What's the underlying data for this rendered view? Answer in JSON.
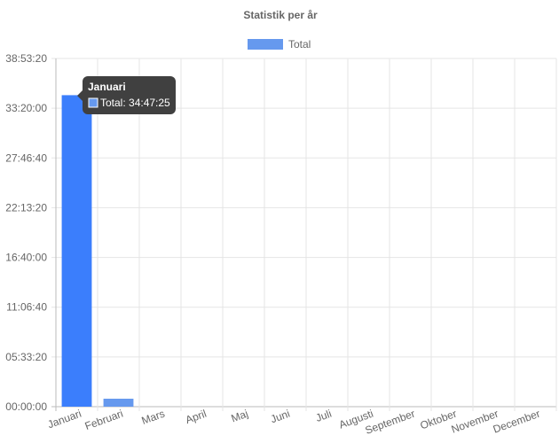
{
  "chart_data": {
    "type": "bar",
    "title": "Statistik per år",
    "xlabel": "",
    "ylabel": "",
    "categories": [
      "Januari",
      "Februari",
      "Mars",
      "April",
      "Maj",
      "Juni",
      "Juli",
      "Augusti",
      "September",
      "Oktober",
      "November",
      "December"
    ],
    "series": [
      {
        "name": "Total",
        "color": "#3b7efc",
        "values": [
          125245,
          3200,
          0,
          0,
          0,
          0,
          0,
          0,
          0,
          0,
          0,
          0
        ]
      }
    ],
    "ylim": [
      0,
      140000
    ],
    "yticks": [
      0,
      20000,
      40000,
      60000,
      80000,
      100000,
      120000,
      140000
    ],
    "ytick_labels": [
      "00:00:00",
      "05:33:20",
      "11:06:40",
      "16:40:00",
      "22:13:20",
      "27:46:40",
      "33:20:00",
      "38:53:20"
    ],
    "legend_position": "top",
    "grid": true,
    "tooltip": {
      "title": "Januari",
      "label": "Total: 34:47:25"
    }
  },
  "colors": {
    "bar": "#3b7efc",
    "bar_dim": "#6699ee",
    "grid": "#e5e5e5",
    "tooltip_bg": "#404040"
  }
}
